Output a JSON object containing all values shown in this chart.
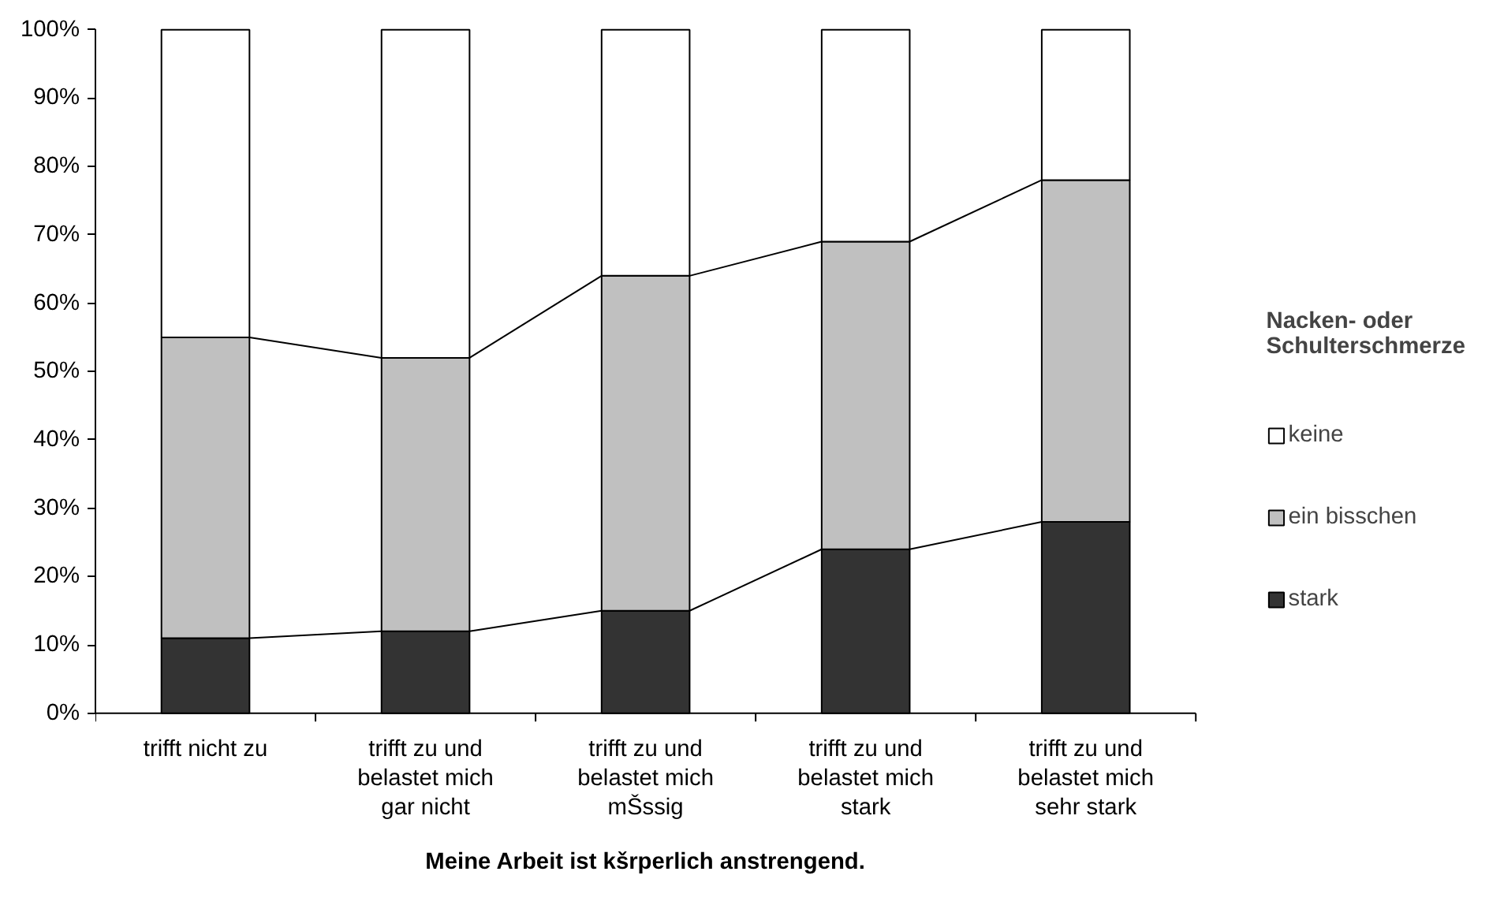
{
  "chart_data": {
    "type": "bar",
    "stacked": true,
    "xlabel": "Meine Arbeit ist kšrperlich anstrengend.",
    "legend_title": "Nacken- oder Schulterschmerze",
    "legend": "right",
    "grid": false,
    "categories": [
      "trifft nicht zu",
      "trifft zu und belastet mich gar nicht",
      "trifft zu und belastet mich mŠssig",
      "trifft zu und belastet mich stark",
      "trifft zu und belastet mich sehr stark"
    ],
    "series": [
      {
        "name": "stark",
        "color": "#333333",
        "values": [
          11,
          12,
          15,
          24,
          28
        ]
      },
      {
        "name": "ein bisschen",
        "color": "#c0c0c0",
        "values": [
          44,
          40,
          49,
          45,
          50
        ]
      },
      {
        "name": "keine",
        "color": "#ffffff",
        "values": [
          45,
          48,
          36,
          31,
          22
        ]
      }
    ],
    "ylim": [
      0,
      100
    ],
    "yticks": [
      {
        "value": 0,
        "label": "0%"
      },
      {
        "value": 10,
        "label": "10%"
      },
      {
        "value": 20,
        "label": "20%"
      },
      {
        "value": 30,
        "label": "30%"
      },
      {
        "value": 40,
        "label": "40%"
      },
      {
        "value": 50,
        "label": "50%"
      },
      {
        "value": 60,
        "label": "60%"
      },
      {
        "value": 70,
        "label": "70%"
      },
      {
        "value": 80,
        "label": "80%"
      },
      {
        "value": 90,
        "label": "90%"
      },
      {
        "value": 100,
        "label": "100%"
      }
    ]
  }
}
